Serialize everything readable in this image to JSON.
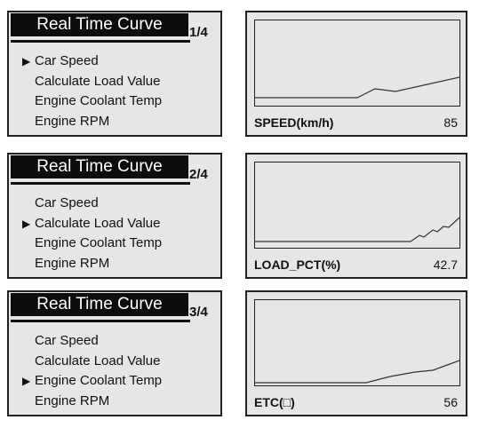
{
  "screens": [
    {
      "title": "Real Time Curve",
      "page": "1/4",
      "menu": [
        "Car Speed",
        "Calculate Load Value",
        "Engine Coolant Temp",
        "Engine RPM"
      ],
      "selected_index": 0,
      "pid_label": "SPEED(km/h)",
      "pid_value": "85"
    },
    {
      "title": "Real Time Curve",
      "page": "2/4",
      "menu": [
        "Car Speed",
        "Calculate Load Value",
        "Engine Coolant Temp",
        "Engine RPM"
      ],
      "selected_index": 1,
      "pid_label": "LOAD_PCT(%)",
      "pid_value": "42.7"
    },
    {
      "title": "Real Time Curve",
      "page": "3/4",
      "menu": [
        "Car Speed",
        "Calculate Load Value",
        "Engine Coolant Temp",
        "Engine RPM"
      ],
      "selected_index": 2,
      "pid_label": "ETC(□)",
      "pid_value": "56"
    }
  ],
  "selection_marker": "▶",
  "colors": {
    "screen_bg": "#e6e6e6",
    "border": "#222222",
    "title_bg": "#0d0d0d",
    "title_text": "#ffffff"
  }
}
